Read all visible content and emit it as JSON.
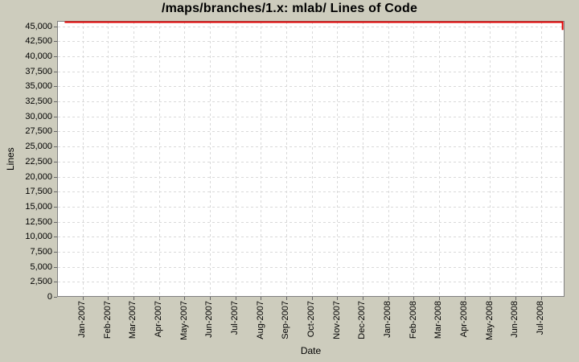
{
  "title": "/maps/branches/1.x: mlab/ Lines of Code",
  "colors": {
    "background": "#cdccbd",
    "plot_background": "#ffffff",
    "grid": "#d9d9d9",
    "axis_border": "#808080",
    "tick_mark": "#666666",
    "series_line": "#e00000",
    "text": "#000000"
  },
  "chart_data": {
    "type": "line",
    "title": "/maps/branches/1.x: mlab/ Lines of Code",
    "xlabel": "Date",
    "ylabel": "Lines",
    "grid": "dashed, both axes",
    "legend": "none",
    "ylim": [
      0,
      45900
    ],
    "x_domain_months_from_jan2007": [
      -1.0,
      18.93
    ],
    "y_ticks": [
      {
        "value": 0,
        "label": "0"
      },
      {
        "value": 2500,
        "label": "2,500"
      },
      {
        "value": 5000,
        "label": "5,000"
      },
      {
        "value": 7500,
        "label": "7,500"
      },
      {
        "value": 10000,
        "label": "10,000"
      },
      {
        "value": 12500,
        "label": "12,500"
      },
      {
        "value": 15000,
        "label": "15,000"
      },
      {
        "value": 17500,
        "label": "17,500"
      },
      {
        "value": 20000,
        "label": "20,000"
      },
      {
        "value": 22500,
        "label": "22,500"
      },
      {
        "value": 25000,
        "label": "25,000"
      },
      {
        "value": 27500,
        "label": "27,500"
      },
      {
        "value": 30000,
        "label": "30,000"
      },
      {
        "value": 32500,
        "label": "32,500"
      },
      {
        "value": 35000,
        "label": "35,000"
      },
      {
        "value": 37500,
        "label": "37,500"
      },
      {
        "value": 40000,
        "label": "40,000"
      },
      {
        "value": 42500,
        "label": "42,500"
      },
      {
        "value": 45000,
        "label": "45,000"
      }
    ],
    "x_tick_labels": [
      "Jan-2007",
      "Feb-2007",
      "Mar-2007",
      "Apr-2007",
      "May-2007",
      "Jun-2007",
      "Jul-2007",
      "Aug-2007",
      "Sep-2007",
      "Oct-2007",
      "Nov-2007",
      "Dec-2007",
      "Jan-2008",
      "Feb-2008",
      "Mar-2008",
      "Apr-2008",
      "May-2008",
      "Jun-2008",
      "Jul-2008"
    ],
    "series": [
      {
        "name": "Lines of Code",
        "color": "#e00000",
        "points": [
          {
            "date": "2006-12-10",
            "value": 45700
          },
          {
            "date": "2008-07-27",
            "value": 45700
          },
          {
            "date": "2008-07-27",
            "value": 44400
          }
        ]
      }
    ]
  }
}
